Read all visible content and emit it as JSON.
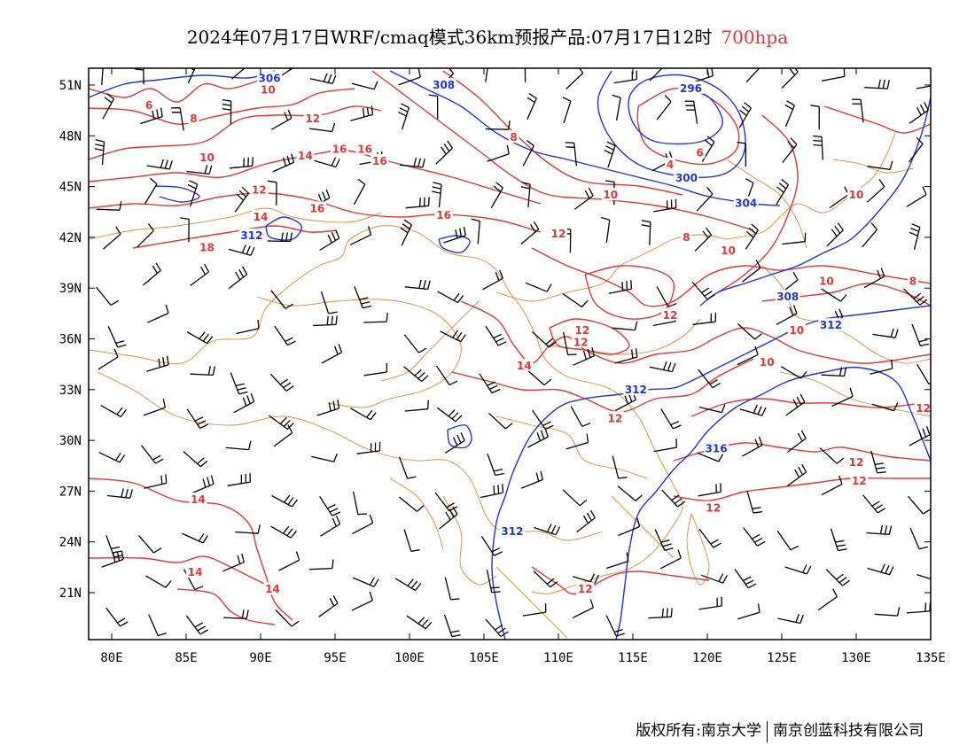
{
  "title": {
    "main": "2024年07月17日WRF/cmaq模式36km预报产品:07月17日12时",
    "level": "700hpa"
  },
  "colors": {
    "height_contour": "#2233dd",
    "temp_contour": "#e0383a",
    "boundary": "#d98b3a",
    "wind_barb": "#000000",
    "level_text": "#e0383a"
  },
  "chart_data": {
    "type": "map",
    "lon_range": [
      78,
      138
    ],
    "lat_range": [
      18,
      52
    ],
    "x_ticks": [
      "80E",
      "85E",
      "90E",
      "95E",
      "100E",
      "105E",
      "110E",
      "115E",
      "120E",
      "125E",
      "130E",
      "135E"
    ],
    "y_ticks": [
      "51N",
      "48N",
      "45N",
      "42N",
      "39N",
      "36N",
      "33N",
      "30N",
      "27N",
      "24N",
      "21N"
    ],
    "height_labels": [
      {
        "text": "306",
        "lon": 90.6,
        "lat": 51.4
      },
      {
        "text": "308",
        "lon": 102.3,
        "lat": 51.0
      },
      {
        "text": "296",
        "lon": 118.9,
        "lat": 50.8
      },
      {
        "text": "300",
        "lon": 118.6,
        "lat": 45.5
      },
      {
        "text": "304",
        "lon": 122.6,
        "lat": 44.0
      },
      {
        "text": "312",
        "lon": 89.4,
        "lat": 42.1
      },
      {
        "text": "308",
        "lon": 125.4,
        "lat": 38.5
      },
      {
        "text": "312",
        "lon": 128.3,
        "lat": 36.8
      },
      {
        "text": "312",
        "lon": 115.2,
        "lat": 33.0
      },
      {
        "text": "316",
        "lon": 120.6,
        "lat": 29.5
      },
      {
        "text": "312",
        "lon": 106.9,
        "lat": 24.6
      }
    ],
    "temp_labels": [
      {
        "text": "10",
        "lon": 90.5,
        "lat": 50.7
      },
      {
        "text": "6",
        "lon": 82.5,
        "lat": 49.8
      },
      {
        "text": "8",
        "lon": 85.5,
        "lat": 49.0
      },
      {
        "text": "12",
        "lon": 93.5,
        "lat": 49.0
      },
      {
        "text": "10",
        "lon": 86.4,
        "lat": 46.7
      },
      {
        "text": "16",
        "lon": 95.3,
        "lat": 47.2
      },
      {
        "text": "16",
        "lon": 97.0,
        "lat": 47.2
      },
      {
        "text": "16",
        "lon": 98.0,
        "lat": 46.5
      },
      {
        "text": "14",
        "lon": 93.0,
        "lat": 46.8
      },
      {
        "text": "8",
        "lon": 107.0,
        "lat": 47.9
      },
      {
        "text": "6",
        "lon": 119.5,
        "lat": 47.0
      },
      {
        "text": "4",
        "lon": 117.5,
        "lat": 46.3
      },
      {
        "text": "10",
        "lon": 113.5,
        "lat": 44.5
      },
      {
        "text": "12",
        "lon": 89.9,
        "lat": 44.8
      },
      {
        "text": "14",
        "lon": 90.0,
        "lat": 43.2
      },
      {
        "text": "16",
        "lon": 93.8,
        "lat": 43.7
      },
      {
        "text": "16",
        "lon": 102.3,
        "lat": 43.3
      },
      {
        "text": "18",
        "lon": 86.4,
        "lat": 41.4
      },
      {
        "text": "12",
        "lon": 110.0,
        "lat": 42.2
      },
      {
        "text": "8",
        "lon": 118.6,
        "lat": 42.0
      },
      {
        "text": "10",
        "lon": 121.4,
        "lat": 41.2
      },
      {
        "text": "10",
        "lon": 130.0,
        "lat": 44.5
      },
      {
        "text": "10",
        "lon": 128.0,
        "lat": 39.4
      },
      {
        "text": "8",
        "lon": 133.8,
        "lat": 39.4
      },
      {
        "text": "12",
        "lon": 117.5,
        "lat": 37.4
      },
      {
        "text": "12",
        "lon": 111.6,
        "lat": 36.5
      },
      {
        "text": "12",
        "lon": 111.5,
        "lat": 35.8
      },
      {
        "text": "10",
        "lon": 126.0,
        "lat": 36.5
      },
      {
        "text": "10",
        "lon": 124.0,
        "lat": 34.6
      },
      {
        "text": "14",
        "lon": 107.7,
        "lat": 34.4
      },
      {
        "text": "12",
        "lon": 113.8,
        "lat": 31.3
      },
      {
        "text": "12",
        "lon": 134.5,
        "lat": 31.9
      },
      {
        "text": "12",
        "lon": 130.0,
        "lat": 28.7
      },
      {
        "text": "12",
        "lon": 130.2,
        "lat": 27.6
      },
      {
        "text": "12",
        "lon": 120.4,
        "lat": 26.0
      },
      {
        "text": "14",
        "lon": 85.8,
        "lat": 26.5
      },
      {
        "text": "14",
        "lon": 85.6,
        "lat": 22.2
      },
      {
        "text": "14",
        "lon": 90.8,
        "lat": 21.2
      },
      {
        "text": "12",
        "lon": 111.8,
        "lat": 21.2
      }
    ]
  },
  "footer": {
    "copyright": "版权所有:南京大学",
    "company": "南京创蓝科技有限公司"
  }
}
